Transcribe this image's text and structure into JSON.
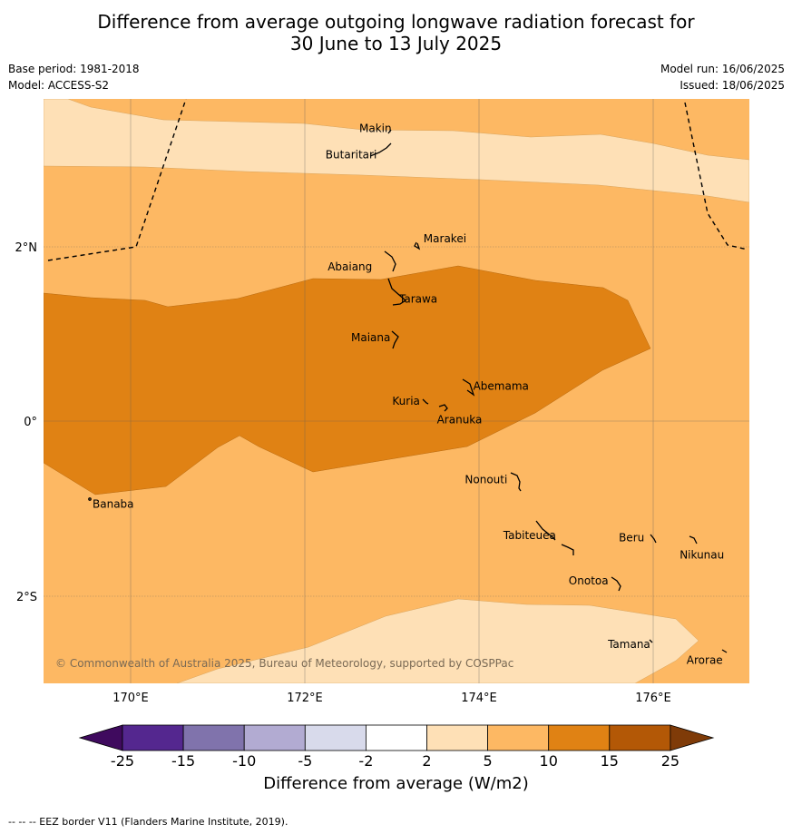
{
  "header": {
    "title_line1": "Difference from average outgoing longwave radiation forecast for",
    "title_line2": "30 June to 13 July 2025",
    "base_period": "Base period: 1981-2018",
    "model": "Model: ACCESS-S2",
    "model_run": "Model run: 16/06/2025",
    "issued": "Issued: 18/06/2025"
  },
  "map": {
    "lon_ticks": [
      "170°E",
      "172°E",
      "174°E",
      "176°E"
    ],
    "lat_ticks": [
      "2°N",
      "0°",
      "2°S"
    ],
    "places": [
      {
        "name": "Makin",
        "lon": 173.0,
        "lat": 3.35
      },
      {
        "name": "Butaritari",
        "lon": 172.8,
        "lat": 3.1
      },
      {
        "name": "Marakei",
        "lon": 173.3,
        "lat": 2.0
      },
      {
        "name": "Abaiang",
        "lon": 172.95,
        "lat": 1.8
      },
      {
        "name": "Tarawa",
        "lon": 173.0,
        "lat": 1.4
      },
      {
        "name": "Maiana",
        "lon": 173.0,
        "lat": 0.95
      },
      {
        "name": "Abemama",
        "lon": 173.85,
        "lat": 0.4
      },
      {
        "name": "Kuria",
        "lon": 173.4,
        "lat": 0.22
      },
      {
        "name": "Aranuka",
        "lon": 173.6,
        "lat": 0.15
      },
      {
        "name": "Banaba",
        "lon": 169.5,
        "lat": -0.87
      },
      {
        "name": "Nonouti",
        "lon": 174.4,
        "lat": -0.67
      },
      {
        "name": "Tabiteuea",
        "lon": 174.8,
        "lat": -1.3
      },
      {
        "name": "Beru",
        "lon": 175.98,
        "lat": -1.33
      },
      {
        "name": "Nikunau",
        "lon": 176.45,
        "lat": -1.37
      },
      {
        "name": "Onotoa",
        "lon": 175.55,
        "lat": -1.8
      },
      {
        "name": "Tamana",
        "lon": 175.98,
        "lat": -2.5
      },
      {
        "name": "Arorae",
        "lon": 176.8,
        "lat": -2.65
      }
    ],
    "copyright": "© Commonwealth of Australia 2025, Bureau of Meteorology, supported by COSPPac"
  },
  "colorbar": {
    "labels": [
      "-25",
      "-15",
      "-10",
      "-5",
      "-2",
      "2",
      "5",
      "10",
      "15",
      "25"
    ],
    "colors": [
      "#3f0a5e",
      "#54278f",
      "#8073ac",
      "#b2abd2",
      "#d8daeb",
      "#ffffff",
      "#fee0b6",
      "#fdb863",
      "#e08214",
      "#b35806",
      "#7f3b08"
    ],
    "title": "Difference from average (W/m2)"
  },
  "footnote": "--  --  -- EEZ border V11 (Flanders Marine Institute, 2019)."
}
